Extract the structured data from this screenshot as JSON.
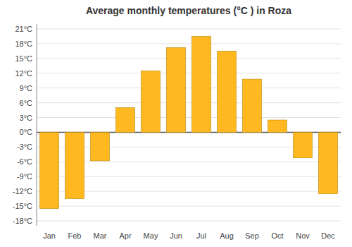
{
  "chart_data": {
    "type": "bar",
    "title": "Average monthly temperatures (°C ) in Roza",
    "categories": [
      "Jan",
      "Feb",
      "Mar",
      "Apr",
      "May",
      "Jun",
      "Jul",
      "Aug",
      "Sep",
      "Oct",
      "Nov",
      "Dec"
    ],
    "values": [
      -15.5,
      -13.5,
      -5.8,
      5.0,
      12.5,
      17.2,
      19.5,
      16.5,
      10.8,
      2.5,
      -5.2,
      -12.5
    ],
    "color": "#FFB820",
    "ylim": [
      -19,
      22
    ],
    "yticks": [
      {
        "value": -18,
        "label": "-18°C"
      },
      {
        "value": -15,
        "label": "-15°C"
      },
      {
        "value": -12,
        "label": "-12°C"
      },
      {
        "value": -9,
        "label": "-9°C"
      },
      {
        "value": -6,
        "label": "-6°C"
      },
      {
        "value": -3,
        "label": "-3°C"
      },
      {
        "value": 0,
        "label": "0°C"
      },
      {
        "value": 3,
        "label": "3°C"
      },
      {
        "value": 6,
        "label": "6°C"
      },
      {
        "value": 9,
        "label": "9°C"
      },
      {
        "value": 12,
        "label": "12°C"
      },
      {
        "value": 15,
        "label": "15°C"
      },
      {
        "value": 18,
        "label": "18°C"
      },
      {
        "value": 21,
        "label": "21°C"
      }
    ],
    "grid": true
  }
}
